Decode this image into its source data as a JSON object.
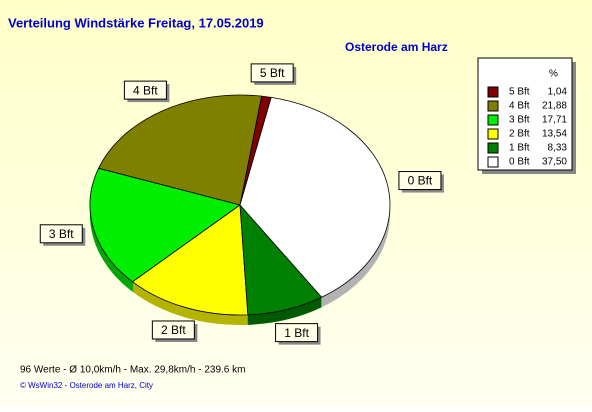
{
  "chart_data": {
    "type": "pie",
    "title": "Verteilung Windstärke  Freitag, 17.05.2019",
    "subtitle": "Osterode am Harz",
    "legend_header": "%",
    "categories": [
      "5 Bft",
      "4 Bft",
      "3 Bft",
      "2 Bft",
      "1 Bft",
      "0 Bft"
    ],
    "values": [
      1.04,
      21.88,
      17.71,
      13.54,
      8.33,
      37.5
    ],
    "value_labels": [
      "1,04",
      "21,88",
      "17,71",
      "13,54",
      "8,33",
      "37,50"
    ],
    "colors": [
      "#800000",
      "#808000",
      "#00ee00",
      "#ffff00",
      "#008000",
      "#ffffff"
    ],
    "annotations": [
      "96 Werte   -   Ø 10,0km/h   -  Max. 29,8km/h   -   239.6 km",
      "© WsWin32  -  Osterode am Harz, City"
    ]
  }
}
